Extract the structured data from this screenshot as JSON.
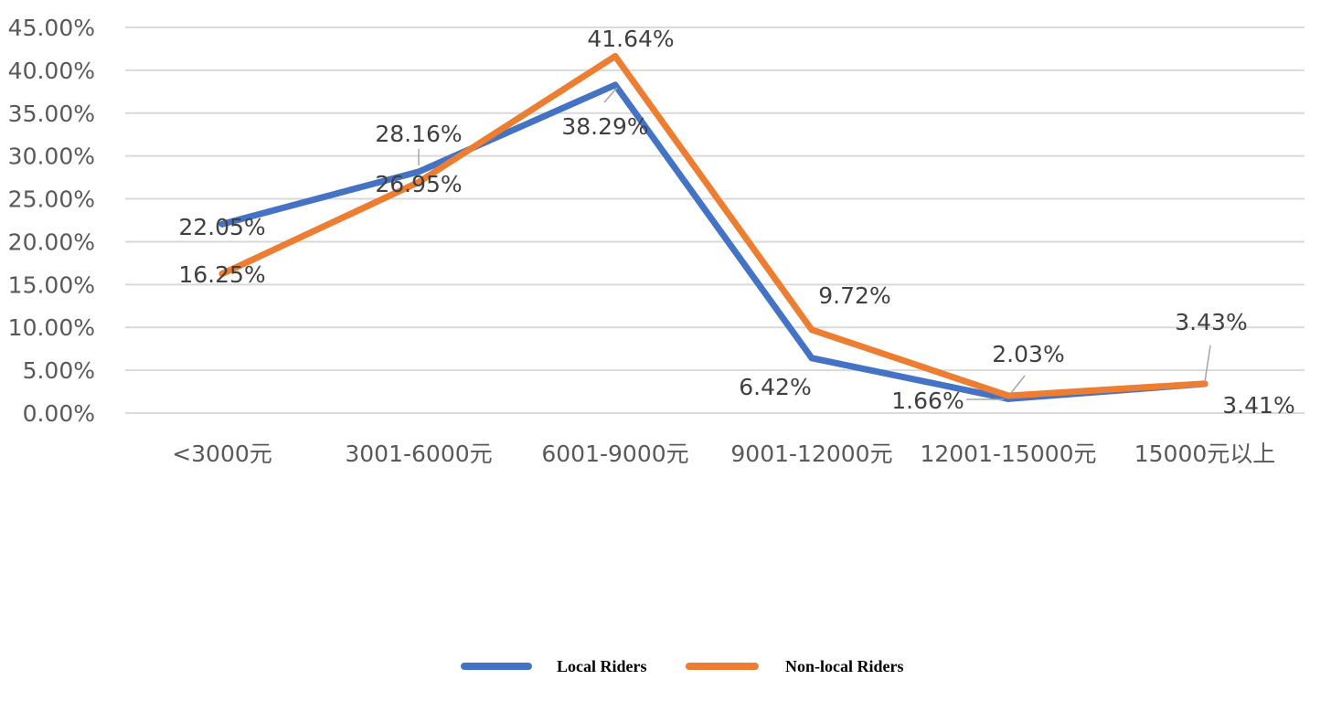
{
  "chart_data": {
    "type": "line",
    "categories": [
      "<3000元",
      "3001-6000元",
      "6001-9000元",
      "9001-12000元",
      "12001-15000元",
      "15000元以上"
    ],
    "series": [
      {
        "name": "Local Riders",
        "values": [
          22.05,
          28.16,
          38.29,
          6.42,
          1.66,
          3.41
        ],
        "labels": [
          "22.05%",
          "28.16%",
          "38.29%",
          "6.42%",
          "1.66%",
          "3.41%"
        ],
        "color": "#4472C4"
      },
      {
        "name": "Non-local Riders",
        "values": [
          16.25,
          26.95,
          41.64,
          9.72,
          2.03,
          3.43
        ],
        "labels": [
          "16.25%",
          "26.95%",
          "41.64%",
          "9.72%",
          "2.03%",
          "3.43%"
        ],
        "color": "#ED7D31"
      }
    ],
    "y_ticks": [
      "0.00%",
      "5.00%",
      "10.00%",
      "15.00%",
      "20.00%",
      "25.00%",
      "30.00%",
      "35.00%",
      "40.00%",
      "45.00%"
    ],
    "ylim": [
      0,
      45
    ],
    "grid": true,
    "legend": "bottom-center",
    "grid_color": "#D9D9D9",
    "title": "",
    "xlabel": "",
    "ylabel": ""
  }
}
